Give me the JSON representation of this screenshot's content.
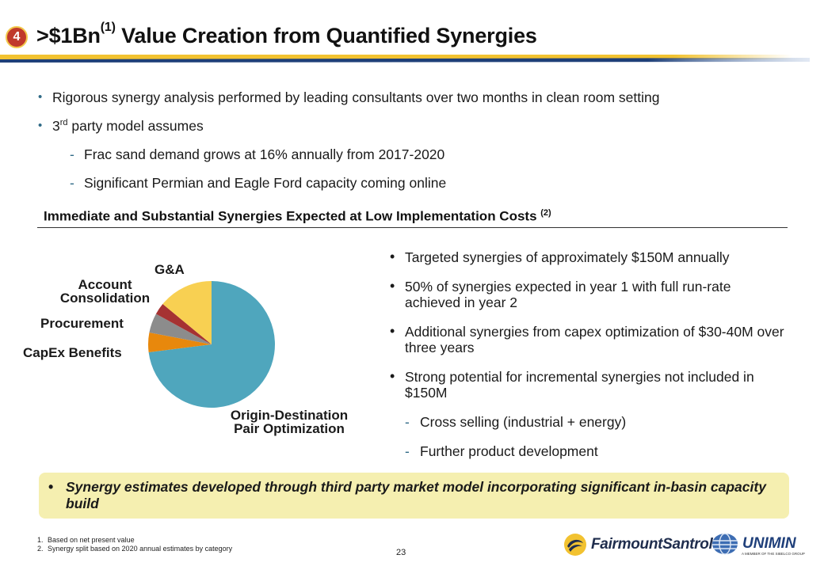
{
  "header": {
    "badge": "4",
    "title_pre": ">$1Bn",
    "title_sup": "(1)",
    "title_post": " Value Creation from Quantified Synergies"
  },
  "intro": {
    "bullet1": "Rigorous synergy analysis performed by leading consultants over two months in clean room setting",
    "bullet2_pre": "3",
    "bullet2_sup": "rd",
    "bullet2_post": " party model assumes",
    "sub1": "Frac sand demand grows at 16% annually from 2017-2020",
    "sub2": "Significant Permian and Eagle Ford capacity coming online"
  },
  "section": {
    "heading": "Immediate and Substantial Synergies Expected at Low Implementation Costs ",
    "heading_sup": "(2)"
  },
  "chart_data": {
    "type": "pie",
    "title": "",
    "slices": [
      {
        "label": "Origin-Destination Pair Optimization",
        "value": 73,
        "color": "#4fa6bd"
      },
      {
        "label": "CapEx Benefits",
        "value": 5,
        "color": "#e8880c"
      },
      {
        "label": "Procurement",
        "value": 5,
        "color": "#8c8c8c"
      },
      {
        "label": "Account Consolidation",
        "value": 3,
        "color": "#a63232"
      },
      {
        "label": "G&A",
        "value": 14,
        "color": "#f8d052"
      }
    ],
    "labels": {
      "od_line1": "Origin-Destination",
      "od_line2": "Pair Optimization",
      "capex": "CapEx Benefits",
      "procurement": "Procurement",
      "account_line1": "Account",
      "account_line2": "Consolidation",
      "ga": "G&A"
    }
  },
  "right": {
    "b1": "Targeted synergies of approximately $150M annually",
    "b2": "50% of synergies expected in year 1 with full run-rate achieved in year 2",
    "b3": "Additional synergies from capex optimization of $30-40M over three years",
    "b4": "Strong potential for incremental synergies not included in $150M",
    "s1": "Cross selling (industrial + energy)",
    "s2": "Further product development"
  },
  "callout": {
    "text": "Synergy estimates developed through third party market model incorporating significant in-basin capacity build"
  },
  "footnotes": {
    "n1": "1.",
    "f1": "Based on net present value",
    "n2": "2.",
    "f2": "Synergy split based on 2020 annual estimates by category"
  },
  "page": {
    "number": "23"
  },
  "logos": {
    "fairmount": "FairmountSantrol",
    "unimin": "UNIMIN",
    "unimin_tag": "A MEMBER OF THE SIBELCO GROUP"
  },
  "colors": {
    "accent_yellow": "#f2c230",
    "accent_blue": "#1e3f78",
    "callout_bg": "#f5efb0"
  }
}
